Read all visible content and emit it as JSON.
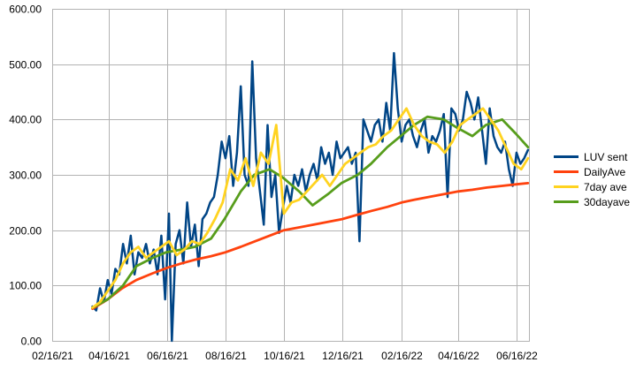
{
  "chart_data": {
    "type": "line",
    "title": "",
    "xlabel": "",
    "ylabel": "",
    "ylim": [
      0,
      600
    ],
    "y_ticks": [
      "0.00",
      "100.00",
      "200.00",
      "300.00",
      "400.00",
      "500.00",
      "600.00"
    ],
    "x_ticks": [
      "02/16/21",
      "04/16/21",
      "06/16/21",
      "08/16/21",
      "10/16/21",
      "12/16/21",
      "02/16/22",
      "04/16/22",
      "06/16/22"
    ],
    "grid": true,
    "legend_position": "right",
    "x_start": "2021-02-16",
    "x_end": "2022-06-29",
    "series": [
      {
        "name": "LUV sent",
        "color": "#004586",
        "x": [
          "2021-03-30",
          "2021-04-03",
          "2021-04-07",
          "2021-04-11",
          "2021-04-15",
          "2021-04-19",
          "2021-04-23",
          "2021-04-27",
          "2021-05-01",
          "2021-05-05",
          "2021-05-09",
          "2021-05-13",
          "2021-05-17",
          "2021-05-21",
          "2021-05-25",
          "2021-05-29",
          "2021-06-02",
          "2021-06-06",
          "2021-06-10",
          "2021-06-14",
          "2021-06-18",
          "2021-06-21",
          "2021-06-25",
          "2021-06-29",
          "2021-07-03",
          "2021-07-07",
          "2021-07-11",
          "2021-07-15",
          "2021-07-19",
          "2021-07-23",
          "2021-07-27",
          "2021-07-31",
          "2021-08-04",
          "2021-08-08",
          "2021-08-12",
          "2021-08-16",
          "2021-08-20",
          "2021-08-24",
          "2021-08-28",
          "2021-09-01",
          "2021-09-05",
          "2021-09-09",
          "2021-09-13",
          "2021-09-17",
          "2021-09-21",
          "2021-09-25",
          "2021-09-29",
          "2021-10-03",
          "2021-10-07",
          "2021-10-11",
          "2021-10-15",
          "2021-10-19",
          "2021-10-23",
          "2021-10-27",
          "2021-10-31",
          "2021-11-04",
          "2021-11-08",
          "2021-11-12",
          "2021-11-16",
          "2021-11-20",
          "2021-11-24",
          "2021-11-28",
          "2021-12-02",
          "2021-12-06",
          "2021-12-10",
          "2021-12-14",
          "2021-12-18",
          "2021-12-22",
          "2021-12-26",
          "2021-12-30",
          "2022-01-03",
          "2022-01-07",
          "2022-01-11",
          "2022-01-15",
          "2022-01-19",
          "2022-01-23",
          "2022-01-27",
          "2022-01-31",
          "2022-02-04",
          "2022-02-08",
          "2022-02-12",
          "2022-02-16",
          "2022-02-20",
          "2022-02-24",
          "2022-02-28",
          "2022-03-04",
          "2022-03-08",
          "2022-03-12",
          "2022-03-16",
          "2022-03-20",
          "2022-03-24",
          "2022-03-28",
          "2022-04-01",
          "2022-04-05",
          "2022-04-09",
          "2022-04-13",
          "2022-04-17",
          "2022-04-21",
          "2022-04-25",
          "2022-04-29",
          "2022-05-03",
          "2022-05-07",
          "2022-05-11",
          "2022-05-15",
          "2022-05-19",
          "2022-05-23",
          "2022-05-27",
          "2022-05-31",
          "2022-06-04",
          "2022-06-08",
          "2022-06-12",
          "2022-06-16",
          "2022-06-20",
          "2022-06-24",
          "2022-06-28"
        ],
        "values": [
          62,
          55,
          95,
          70,
          110,
          85,
          130,
          120,
          175,
          140,
          190,
          120,
          160,
          150,
          175,
          140,
          165,
          120,
          190,
          75,
          230,
          0,
          175,
          200,
          140,
          250,
          170,
          210,
          135,
          220,
          230,
          250,
          260,
          300,
          360,
          330,
          370,
          280,
          340,
          460,
          300,
          280,
          505,
          330,
          270,
          210,
          390,
          260,
          300,
          195,
          240,
          280,
          250,
          300,
          280,
          310,
          270,
          300,
          320,
          290,
          350,
          320,
          340,
          300,
          360,
          330,
          340,
          350,
          320,
          340,
          180,
          400,
          380,
          360,
          390,
          400,
          360,
          430,
          380,
          520,
          420,
          360,
          390,
          400,
          370,
          350,
          380,
          400,
          340,
          370,
          360,
          380,
          410,
          260,
          420,
          410,
          380,
          400,
          450,
          430,
          400,
          440,
          380,
          320,
          420,
          370,
          350,
          340,
          360,
          310,
          280,
          340,
          320,
          330,
          345
        ]
      },
      {
        "name": "DailyAve",
        "color": "#ff420e",
        "x": [
          "2021-03-30",
          "2021-04-15",
          "2021-04-30",
          "2021-05-15",
          "2021-06-01",
          "2021-06-16",
          "2021-07-01",
          "2021-07-16",
          "2021-08-01",
          "2021-08-16",
          "2021-09-01",
          "2021-09-16",
          "2021-10-01",
          "2021-10-16",
          "2021-11-01",
          "2021-11-16",
          "2021-12-01",
          "2021-12-16",
          "2022-01-01",
          "2022-01-16",
          "2022-02-01",
          "2022-02-16",
          "2022-03-01",
          "2022-03-16",
          "2022-04-01",
          "2022-04-16",
          "2022-05-01",
          "2022-05-16",
          "2022-06-01",
          "2022-06-16",
          "2022-06-28"
        ],
        "values": [
          58,
          75,
          95,
          110,
          122,
          132,
          140,
          147,
          153,
          160,
          170,
          180,
          190,
          200,
          205,
          210,
          215,
          220,
          228,
          235,
          242,
          250,
          255,
          260,
          265,
          270,
          273,
          277,
          280,
          283,
          285
        ]
      },
      {
        "name": "7day ave",
        "color": "#ffd320",
        "x": [
          "2021-03-30",
          "2021-04-07",
          "2021-04-15",
          "2021-04-23",
          "2021-05-01",
          "2021-05-09",
          "2021-05-17",
          "2021-05-25",
          "2021-06-02",
          "2021-06-10",
          "2021-06-18",
          "2021-06-26",
          "2021-07-04",
          "2021-07-12",
          "2021-07-20",
          "2021-07-28",
          "2021-08-05",
          "2021-08-13",
          "2021-08-21",
          "2021-08-29",
          "2021-09-06",
          "2021-09-14",
          "2021-09-22",
          "2021-09-30",
          "2021-10-08",
          "2021-10-16",
          "2021-10-24",
          "2021-11-01",
          "2021-11-09",
          "2021-11-17",
          "2021-11-25",
          "2021-12-03",
          "2021-12-11",
          "2021-12-19",
          "2021-12-27",
          "2022-01-04",
          "2022-01-12",
          "2022-01-20",
          "2022-01-28",
          "2022-02-05",
          "2022-02-13",
          "2022-02-21",
          "2022-03-01",
          "2022-03-09",
          "2022-03-17",
          "2022-03-25",
          "2022-04-02",
          "2022-04-10",
          "2022-04-18",
          "2022-04-26",
          "2022-05-04",
          "2022-05-12",
          "2022-05-20",
          "2022-05-28",
          "2022-06-05",
          "2022-06-13",
          "2022-06-21",
          "2022-06-28"
        ],
        "values": [
          60,
          70,
          90,
          110,
          140,
          160,
          170,
          150,
          160,
          170,
          180,
          155,
          165,
          180,
          175,
          195,
          220,
          250,
          310,
          290,
          330,
          280,
          340,
          320,
          390,
          230,
          250,
          255,
          270,
          285,
          300,
          280,
          300,
          320,
          330,
          340,
          350,
          355,
          370,
          380,
          400,
          420,
          390,
          370,
          360,
          355,
          340,
          360,
          390,
          400,
          410,
          420,
          400,
          380,
          350,
          320,
          310,
          330
        ]
      },
      {
        "name": "30dayave",
        "color": "#579d1c",
        "x": [
          "2021-03-30",
          "2021-04-15",
          "2021-05-01",
          "2021-05-15",
          "2021-06-01",
          "2021-06-15",
          "2021-07-01",
          "2021-07-15",
          "2021-08-01",
          "2021-08-15",
          "2021-09-01",
          "2021-09-15",
          "2021-10-01",
          "2021-10-15",
          "2021-11-01",
          "2021-11-15",
          "2021-12-01",
          "2021-12-15",
          "2022-01-01",
          "2022-01-15",
          "2022-02-01",
          "2022-02-15",
          "2022-03-01",
          "2022-03-15",
          "2022-04-01",
          "2022-04-15",
          "2022-05-01",
          "2022-05-15",
          "2022-06-01",
          "2022-06-15",
          "2022-06-28"
        ],
        "values": [
          60,
          75,
          100,
          135,
          150,
          160,
          165,
          170,
          185,
          220,
          270,
          300,
          310,
          295,
          270,
          245,
          265,
          285,
          300,
          320,
          350,
          370,
          390,
          405,
          400,
          385,
          370,
          390,
          400,
          375,
          350
        ]
      }
    ]
  }
}
